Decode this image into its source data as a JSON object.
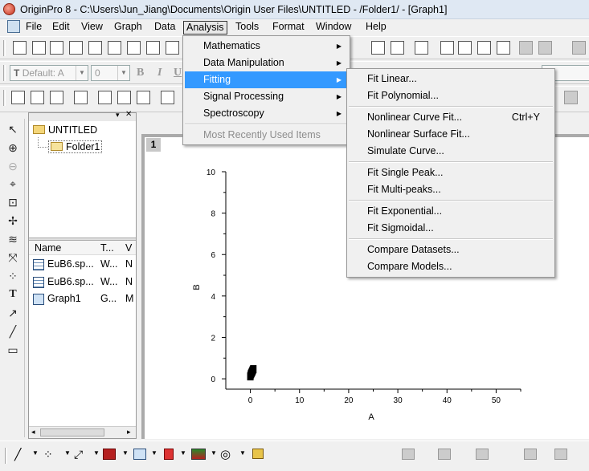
{
  "window": {
    "title": "OriginPro 8 - C:\\Users\\Jun_Jiang\\Documents\\Origin User Files\\UNTITLED - /Folder1/ - [Graph1]"
  },
  "menubar": [
    "File",
    "Edit",
    "View",
    "Graph",
    "Data",
    "Analysis",
    "Tools",
    "Format",
    "Window",
    "Help"
  ],
  "format_toolbar": {
    "font_combo": "Default: A",
    "size_combo": "0",
    "bold": "B",
    "italic": "I",
    "underline": "U"
  },
  "analysis_menu": [
    {
      "label": "Mathematics",
      "submenu": true
    },
    {
      "label": "Data Manipulation",
      "submenu": true
    },
    {
      "label": "Fitting",
      "submenu": true,
      "highlighted": true
    },
    {
      "label": "Signal Processing",
      "submenu": true
    },
    {
      "label": "Spectroscopy",
      "submenu": true
    },
    {
      "label": "Most Recently Used Items",
      "disabled": true
    }
  ],
  "fitting_menu": [
    {
      "label": "Fit Linear..."
    },
    {
      "label": "Fit Polynomial..."
    },
    {
      "label": "Nonlinear Curve Fit...",
      "shortcut": "Ctrl+Y"
    },
    {
      "label": "Nonlinear Surface Fit..."
    },
    {
      "label": "Simulate Curve..."
    },
    {
      "label": "Fit Single Peak..."
    },
    {
      "label": "Fit Multi-peaks..."
    },
    {
      "label": "Fit Exponential..."
    },
    {
      "label": "Fit Sigmoidal..."
    },
    {
      "label": "Compare Datasets..."
    },
    {
      "label": "Compare Models..."
    }
  ],
  "project_explorer": {
    "root": "UNTITLED",
    "folder": "Folder1",
    "columns": [
      "Name",
      "T...",
      "V"
    ],
    "items": [
      {
        "name": "EuB6.sp...",
        "type": "W...",
        "v": "N",
        "icon": "worksheet-icon"
      },
      {
        "name": "EuB6.sp...",
        "type": "W...",
        "v": "N",
        "icon": "worksheet-icon"
      },
      {
        "name": "Graph1",
        "type": "G...",
        "v": "M",
        "icon": "graph-icon"
      }
    ]
  },
  "graph": {
    "tab": "1"
  },
  "chart_data": {
    "type": "scatter",
    "title": "",
    "xlabel": "A",
    "ylabel": "B",
    "xlim": [
      -5,
      55
    ],
    "ylim": [
      -0.5,
      10
    ],
    "x_ticks": [
      "0",
      "10",
      "20",
      "30",
      "40",
      "50"
    ],
    "y_ticks": [
      "0",
      "2",
      "4",
      "6",
      "8",
      "10"
    ],
    "series": [
      {
        "x": [
          0,
          0.1,
          0.2,
          0.3,
          0.4,
          0.5,
          0.6
        ],
        "y": [
          0,
          0.1,
          0.15,
          0.2,
          0.25,
          0.3,
          0.35
        ]
      }
    ]
  }
}
